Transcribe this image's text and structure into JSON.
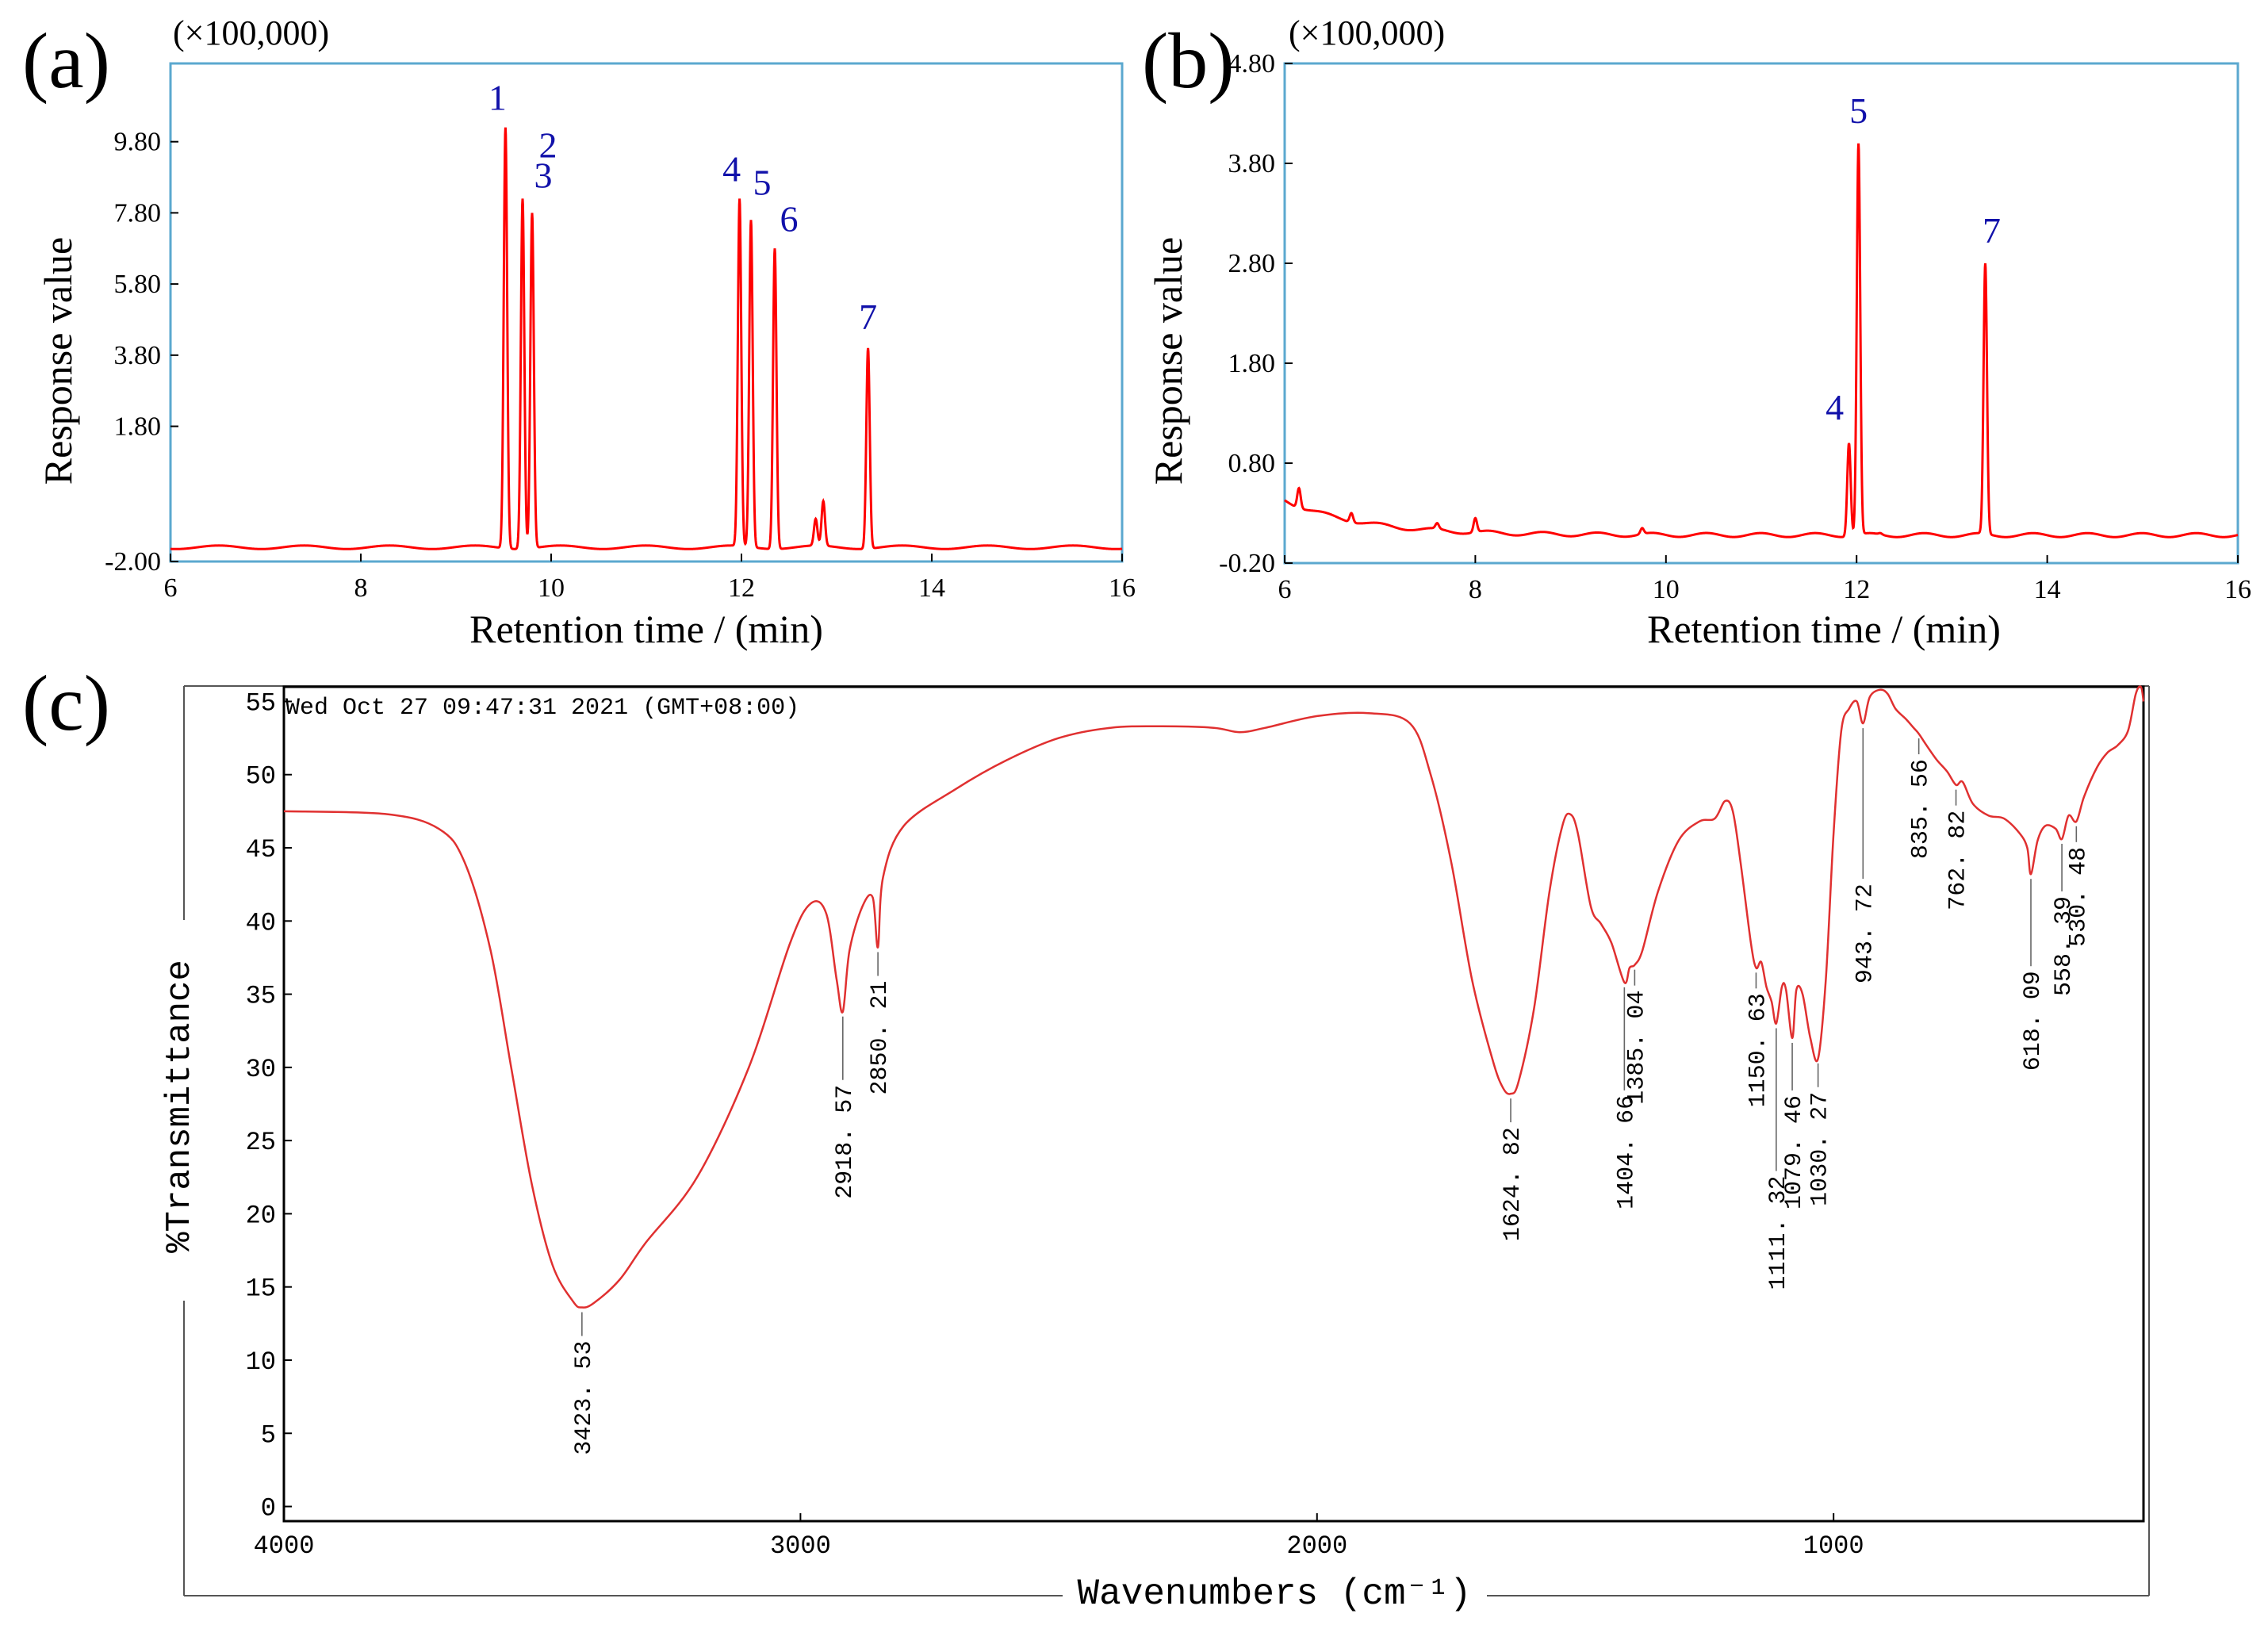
{
  "chart_data": [
    {
      "panel_label": "(a)",
      "type": "line",
      "scale_note": "(×100,000)",
      "xlabel": "Retention time / (min)",
      "ylabel": "Response value",
      "xlim": [
        6,
        16
      ],
      "ylim": [
        -2.0,
        12.0
      ],
      "x_ticks": [
        "6",
        "8",
        "10",
        "12",
        "14",
        "16"
      ],
      "y_ticks": [
        "-2.00",
        "1.80",
        "3.80",
        "5.80",
        "7.80",
        "9.80"
      ],
      "y_tick_values": [
        -2.0,
        1.8,
        3.8,
        5.8,
        7.8,
        9.8
      ],
      "line_color": "#ff0000",
      "frame_color": "#5ba8cf",
      "baseline": -1.6,
      "peaks": [
        {
          "label": "1",
          "x": 9.52,
          "y": 10.2
        },
        {
          "label": "2",
          "x": 9.7,
          "y": 8.2
        },
        {
          "label": "3",
          "x": 9.8,
          "y": 7.8
        },
        {
          "label": "4",
          "x": 11.98,
          "y": 8.2
        },
        {
          "label": "5",
          "x": 12.1,
          "y": 7.6
        },
        {
          "label": "6",
          "x": 12.35,
          "y": 6.8
        },
        {
          "label": "7",
          "x": 13.33,
          "y": 4.0
        }
      ],
      "minor_peaks": [
        {
          "x": 12.78,
          "y": -0.8
        },
        {
          "x": 12.86,
          "y": -0.3
        }
      ]
    },
    {
      "panel_label": "(b)",
      "type": "line",
      "scale_note": "(×100,000)",
      "xlabel": "Retention time / (min)",
      "ylabel": "Response value",
      "xlim": [
        6,
        16
      ],
      "ylim": [
        -0.2,
        4.8
      ],
      "x_ticks": [
        "6",
        "8",
        "10",
        "12",
        "14",
        "16"
      ],
      "y_ticks": [
        "-0.20",
        "0.80",
        "1.80",
        "2.80",
        "3.80",
        "4.80"
      ],
      "y_tick_values": [
        -0.2,
        0.8,
        1.8,
        2.8,
        3.8,
        4.8
      ],
      "line_color": "#ff0000",
      "frame_color": "#5ba8cf",
      "peaks": [
        {
          "label": "4",
          "x": 11.92,
          "y": 1.0
        },
        {
          "label": "5",
          "x": 12.02,
          "y": 4.0
        },
        {
          "label": "7",
          "x": 13.35,
          "y": 2.8
        }
      ],
      "minor_peaks": [
        {
          "x": 6.15,
          "y": 0.55
        },
        {
          "x": 6.7,
          "y": 0.3
        },
        {
          "x": 7.6,
          "y": 0.2
        },
        {
          "x": 8.0,
          "y": 0.25
        },
        {
          "x": 9.75,
          "y": 0.15
        },
        {
          "x": 12.25,
          "y": 0.1
        }
      ]
    },
    {
      "panel_label": "(c)",
      "type": "line",
      "timestamp": "Wed Oct 27 09:47:31 2021 (GMT+08:00)",
      "xlabel": "Wavenumbers (cm⁻¹)",
      "ylabel": "%Transmittance",
      "xlim": [
        4000,
        400
      ],
      "ylim": [
        -1,
        56
      ],
      "x_ticks": [
        "4000",
        "3000",
        "2000",
        "1000"
      ],
      "x_tick_values": [
        4000,
        3000,
        2000,
        1000
      ],
      "y_ticks": [
        "0",
        "5",
        "10",
        "15",
        "20",
        "25",
        "30",
        "35",
        "40",
        "45",
        "50",
        "55"
      ],
      "y_tick_values": [
        0,
        5,
        10,
        15,
        20,
        25,
        30,
        35,
        40,
        45,
        50,
        55
      ],
      "line_color": "#e03030",
      "spectrum": [
        [
          4000,
          47.5
        ],
        [
          3800,
          47.3
        ],
        [
          3700,
          46.3
        ],
        [
          3650,
          44.0
        ],
        [
          3600,
          38.0
        ],
        [
          3560,
          30.0
        ],
        [
          3520,
          22.0
        ],
        [
          3480,
          16.5
        ],
        [
          3440,
          14.0
        ],
        [
          3423,
          13.6
        ],
        [
          3400,
          13.9
        ],
        [
          3350,
          15.5
        ],
        [
          3300,
          18.0
        ],
        [
          3200,
          22.5
        ],
        [
          3100,
          30.0
        ],
        [
          3020,
          38.5
        ],
        [
          2980,
          41.2
        ],
        [
          2950,
          40.5
        ],
        [
          2930,
          36.0
        ],
        [
          2918,
          33.8
        ],
        [
          2905,
          38.0
        ],
        [
          2880,
          41.0
        ],
        [
          2860,
          41.6
        ],
        [
          2850,
          38.2
        ],
        [
          2840,
          43.0
        ],
        [
          2800,
          46.5
        ],
        [
          2700,
          49.0
        ],
        [
          2600,
          51.0
        ],
        [
          2500,
          52.5
        ],
        [
          2400,
          53.2
        ],
        [
          2300,
          53.3
        ],
        [
          2200,
          53.2
        ],
        [
          2150,
          52.9
        ],
        [
          2100,
          53.2
        ],
        [
          2000,
          54.0
        ],
        [
          1900,
          54.2
        ],
        [
          1820,
          53.5
        ],
        [
          1780,
          50.0
        ],
        [
          1740,
          44.0
        ],
        [
          1700,
          36.0
        ],
        [
          1660,
          30.5
        ],
        [
          1640,
          28.6
        ],
        [
          1625,
          28.2
        ],
        [
          1610,
          29.0
        ],
        [
          1580,
          34.0
        ],
        [
          1550,
          42.0
        ],
        [
          1525,
          46.5
        ],
        [
          1510,
          47.3
        ],
        [
          1495,
          46.0
        ],
        [
          1470,
          41.0
        ],
        [
          1450,
          39.8
        ],
        [
          1430,
          38.5
        ],
        [
          1405,
          35.8
        ],
        [
          1395,
          36.8
        ],
        [
          1385,
          37.0
        ],
        [
          1370,
          38.0
        ],
        [
          1340,
          42.0
        ],
        [
          1300,
          45.5
        ],
        [
          1260,
          46.8
        ],
        [
          1230,
          47.0
        ],
        [
          1210,
          48.2
        ],
        [
          1195,
          47.5
        ],
        [
          1180,
          44.0
        ],
        [
          1160,
          38.5
        ],
        [
          1150,
          36.8
        ],
        [
          1140,
          37.2
        ],
        [
          1130,
          35.5
        ],
        [
          1120,
          34.5
        ],
        [
          1111,
          33.0
        ],
        [
          1100,
          35.5
        ],
        [
          1092,
          35.3
        ],
        [
          1080,
          32.0
        ],
        [
          1072,
          35.3
        ],
        [
          1060,
          35.0
        ],
        [
          1045,
          32.0
        ],
        [
          1030,
          30.6
        ],
        [
          1015,
          36.0
        ],
        [
          1000,
          46.0
        ],
        [
          985,
          53.0
        ],
        [
          970,
          54.5
        ],
        [
          955,
          55.0
        ],
        [
          943,
          53.5
        ],
        [
          930,
          55.3
        ],
        [
          910,
          55.8
        ],
        [
          895,
          55.5
        ],
        [
          880,
          54.5
        ],
        [
          860,
          53.8
        ],
        [
          845,
          53.2
        ],
        [
          835,
          52.8
        ],
        [
          820,
          52.0
        ],
        [
          800,
          51.0
        ],
        [
          780,
          50.2
        ],
        [
          763,
          49.3
        ],
        [
          750,
          49.5
        ],
        [
          730,
          48.0
        ],
        [
          700,
          47.2
        ],
        [
          670,
          47.0
        ],
        [
          640,
          46.0
        ],
        [
          625,
          45.0
        ],
        [
          618,
          43.2
        ],
        [
          605,
          45.5
        ],
        [
          590,
          46.5
        ],
        [
          570,
          46.3
        ],
        [
          558,
          45.6
        ],
        [
          545,
          47.2
        ],
        [
          530,
          46.8
        ],
        [
          515,
          48.5
        ],
        [
          490,
          50.5
        ],
        [
          470,
          51.5
        ],
        [
          450,
          52.0
        ],
        [
          430,
          53.0
        ],
        [
          415,
          55.5
        ],
        [
          405,
          56.0
        ],
        [
          400,
          55.0
        ]
      ],
      "annotations": [
        {
          "label": "3423. 53",
          "x": 3423,
          "y": 13.6
        },
        {
          "label": "2918. 57",
          "x": 2918,
          "y": 33.8
        },
        {
          "label": "2850. 21",
          "x": 2850,
          "y": 38.2
        },
        {
          "label": "1624. 82",
          "x": 1625,
          "y": 28.2
        },
        {
          "label": "1404. 66",
          "x": 1405,
          "y": 35.8
        },
        {
          "label": "1385. 04",
          "x": 1385,
          "y": 37.0
        },
        {
          "label": "1150. 63",
          "x": 1150,
          "y": 36.8
        },
        {
          "label": "1111. 32",
          "x": 1111,
          "y": 33.0
        },
        {
          "label": "1079. 46",
          "x": 1080,
          "y": 32.0
        },
        {
          "label": "1030. 27",
          "x": 1030,
          "y": 30.6
        },
        {
          "label": "943. 72",
          "x": 943,
          "y": 53.5
        },
        {
          "label": "835. 56",
          "x": 835,
          "y": 52.8
        },
        {
          "label": "762. 82",
          "x": 763,
          "y": 49.3
        },
        {
          "label": "618. 09",
          "x": 618,
          "y": 43.2
        },
        {
          "label": "558. 39",
          "x": 558,
          "y": 45.6
        },
        {
          "label": "530. 48",
          "x": 530,
          "y": 46.8
        }
      ]
    }
  ]
}
